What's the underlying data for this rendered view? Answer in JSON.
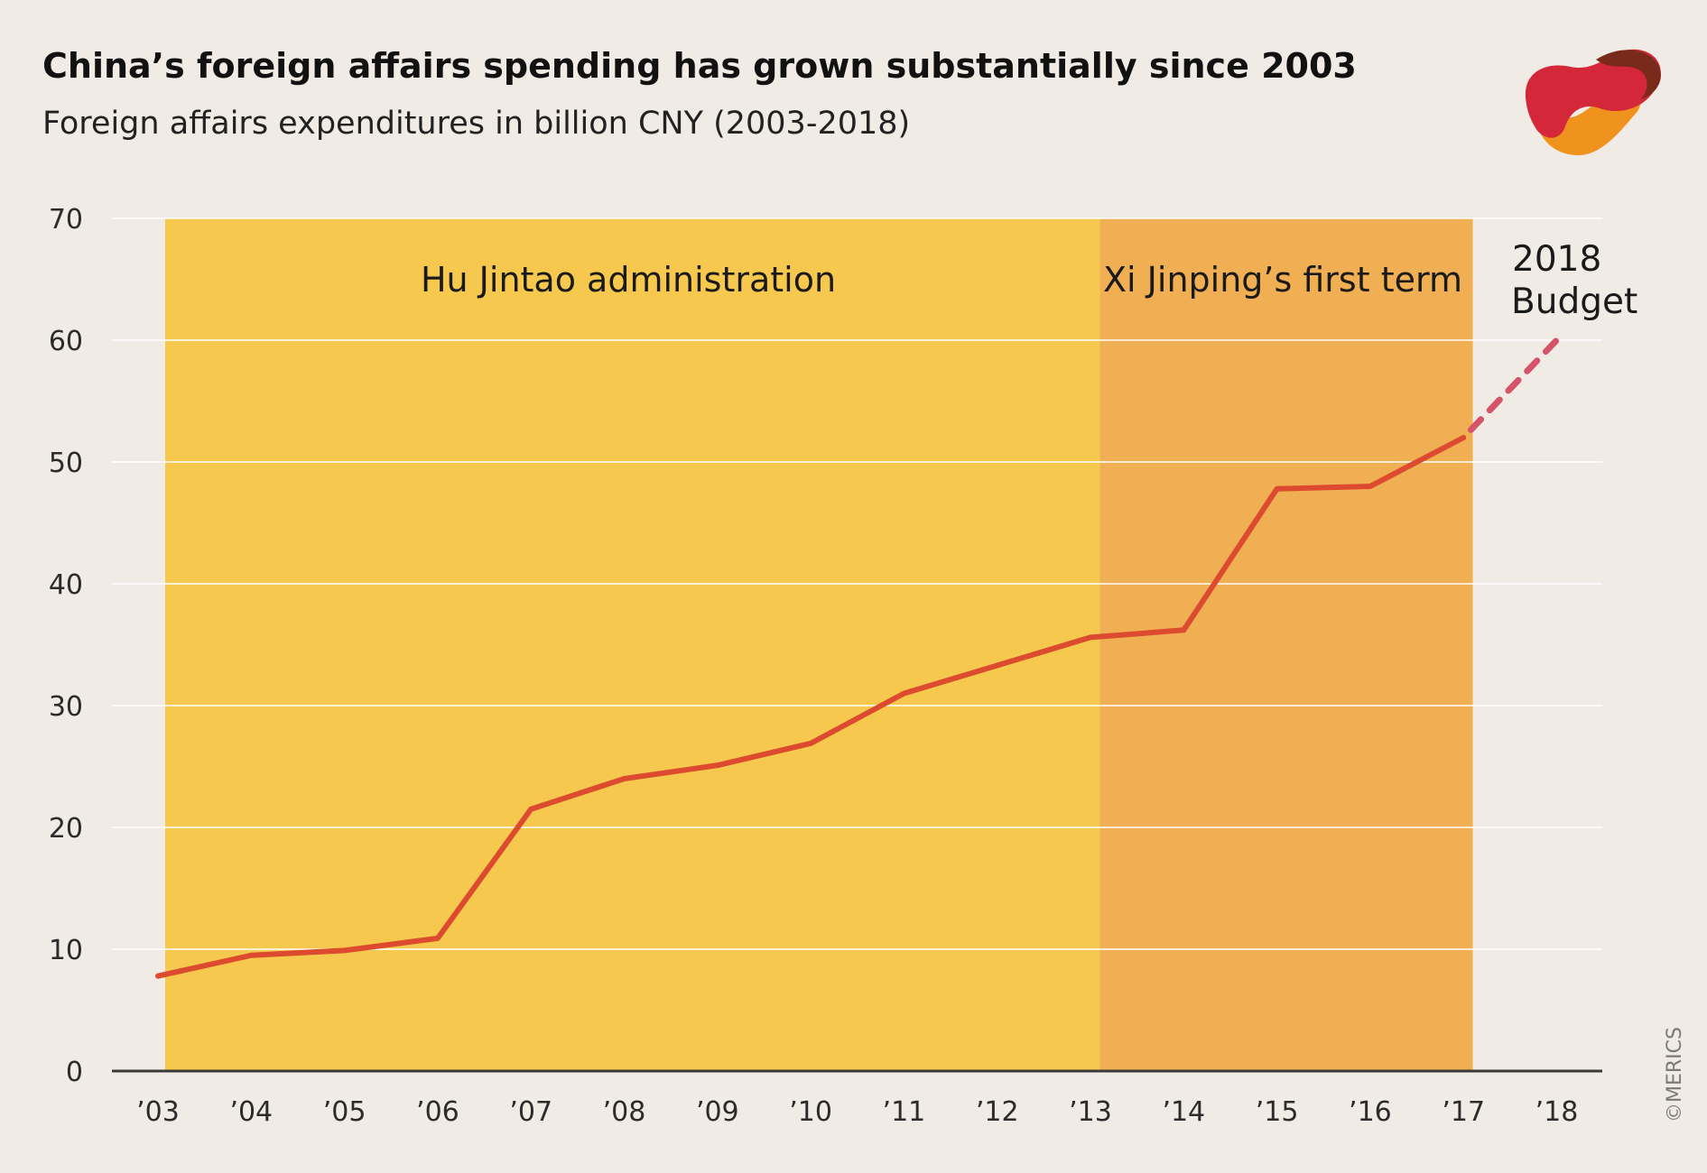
{
  "header": {
    "title": "China’s foreign affairs spending has grown substantially since 2003",
    "subtitle": "Foreign affairs expenditures  in billion CNY (2003-2018)"
  },
  "credit": "©MERICS",
  "colors": {
    "background": "#f0ebe4",
    "hu_period": "#f6c94e",
    "xi_period": "#f0af52",
    "line": "#dc4a2f",
    "budget_line": "#d6546a",
    "gridline": "#ffffff",
    "baseline": "#3a3a3a"
  },
  "chart_data": {
    "type": "line",
    "title": "China’s foreign affairs spending has grown substantially since 2003",
    "subtitle": "Foreign affairs expenditures  in billion CNY (2003-2018)",
    "xlabel": "",
    "ylabel": "",
    "ylim": [
      0,
      70
    ],
    "y_ticks": [
      "0",
      "10",
      "20",
      "30",
      "40",
      "50",
      "60",
      "70"
    ],
    "categories": [
      "’03",
      "’04",
      "’05",
      "’06",
      "’07",
      "’08",
      "’09",
      "’10",
      "’11",
      "’12",
      "’13",
      "’14",
      "’15",
      "’16",
      "’17",
      "’18"
    ],
    "series": [
      {
        "values": [
          7.8,
          9.5,
          9.9,
          10.9,
          21.5,
          24.0,
          25.1,
          26.9,
          31.0,
          33.3,
          35.6,
          36.2,
          47.8,
          48.0,
          52.0,
          null
        ],
        "style": "solid"
      },
      {
        "values": [
          null,
          null,
          null,
          null,
          null,
          null,
          null,
          null,
          null,
          null,
          null,
          null,
          null,
          null,
          52.0,
          60.0
        ],
        "style": "dashed"
      }
    ],
    "periods": [
      {
        "label": "Hu Jintao administration",
        "start": 2003,
        "end": 2013.1
      },
      {
        "label": "Xi Jinping’s first term",
        "start": 2013.1,
        "end": 2017.1
      }
    ],
    "annotations": [
      {
        "lines": [
          "2018",
          "Budget"
        ]
      }
    ],
    "grid": true,
    "legend": "none"
  }
}
